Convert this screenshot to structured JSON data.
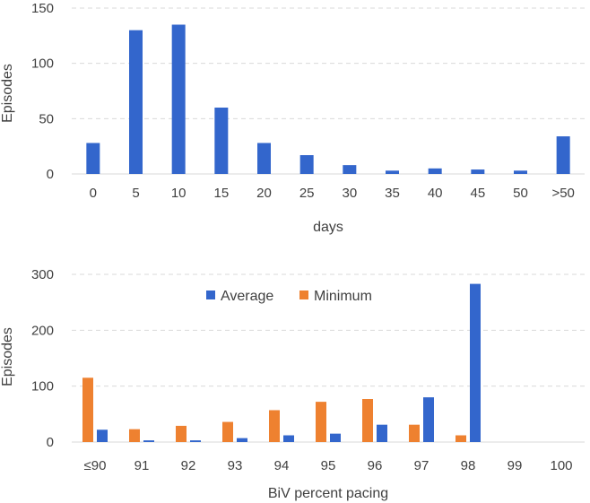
{
  "chart_data": [
    {
      "type": "bar",
      "title": "",
      "xlabel": "days",
      "ylabel": "Episodes",
      "ylim": [
        0,
        150
      ],
      "yticks": [
        "0",
        "50",
        "100",
        "150"
      ],
      "grid": true,
      "categories": [
        "0",
        "5",
        "10",
        "15",
        "20",
        "25",
        "30",
        "35",
        "40",
        "45",
        "50",
        ">50"
      ],
      "series": [
        {
          "name": "Episodes",
          "color": "#3366cc",
          "values": [
            28,
            130,
            135,
            60,
            28,
            17,
            8,
            3,
            5,
            4,
            3,
            34
          ]
        }
      ]
    },
    {
      "type": "bar",
      "title": "",
      "xlabel": "BiV percent pacing",
      "ylabel": "Episodes",
      "ylim": [
        0,
        300
      ],
      "yticks": [
        "0",
        "100",
        "200",
        "300"
      ],
      "grid": true,
      "legend_position": "top",
      "categories": [
        "≤90",
        "91",
        "92",
        "93",
        "94",
        "95",
        "96",
        "97",
        "98",
        "99",
        "100"
      ],
      "series": [
        {
          "name": "Minimum",
          "color": "#ee8130",
          "values": [
            115,
            23,
            29,
            36,
            57,
            72,
            77,
            31,
            12,
            0,
            0
          ]
        },
        {
          "name": "Average",
          "color": "#3366cc",
          "values": [
            22,
            3,
            3,
            7,
            12,
            15,
            31,
            80,
            283,
            0,
            0
          ]
        }
      ],
      "legend": [
        {
          "name": "Average",
          "color": "#3366cc"
        },
        {
          "name": "Minimum",
          "color": "#ee8130"
        }
      ]
    }
  ]
}
